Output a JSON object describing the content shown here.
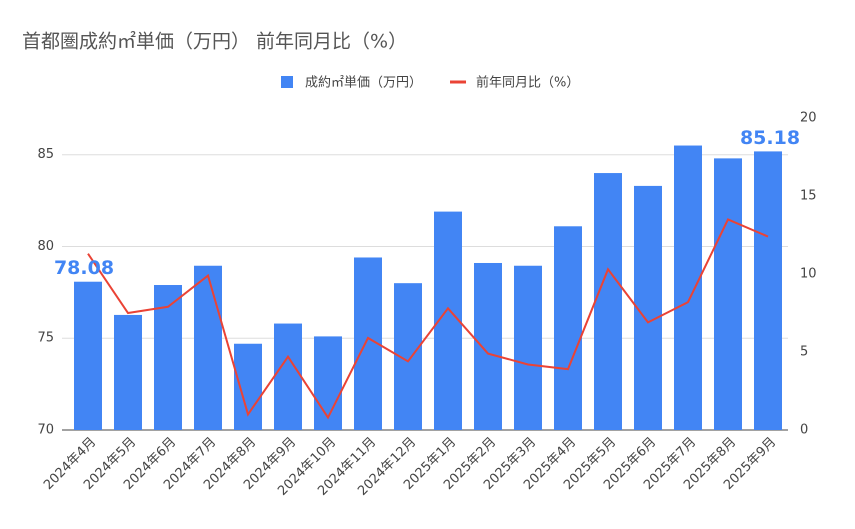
{
  "chart_data": {
    "type": "bar",
    "title": "首都圏成約㎡単価（万円） 前年同月比（%）",
    "categories": [
      "2024年4月",
      "2024年5月",
      "2024年6月",
      "2024年7月",
      "2024年8月",
      "2024年9月",
      "2024年10月",
      "2024年11月",
      "2024年12月",
      "2025年1月",
      "2025年2月",
      "2025年3月",
      "2025年4月",
      "2025年5月",
      "2025年6月",
      "2025年7月",
      "2025年8月",
      "2025年9月"
    ],
    "series": [
      {
        "name": "成約㎡単価（万円）",
        "type": "bar",
        "color": "#4285f4",
        "values": [
          78.08,
          76.27,
          77.9,
          78.95,
          74.7,
          75.8,
          75.1,
          79.4,
          78.0,
          81.9,
          79.1,
          78.95,
          81.1,
          84.0,
          83.3,
          85.5,
          84.8,
          85.18
        ]
      },
      {
        "name": "前年同月比（%）",
        "type": "line",
        "axis": "y2",
        "color": "#ea4335",
        "values": [
          11.3,
          7.5,
          7.9,
          9.9,
          1.0,
          4.7,
          0.8,
          5.9,
          4.4,
          7.8,
          4.9,
          4.2,
          3.9,
          10.3,
          6.9,
          8.2,
          13.5,
          12.4
        ]
      }
    ],
    "data_labels": "ends",
    "ylim": [
      70,
      87
    ],
    "yticks": [
      70,
      75,
      80,
      85
    ],
    "y2lim": [
      0,
      20
    ],
    "y2ticks": [
      0,
      5,
      10,
      15,
      20
    ],
    "grid": true
  }
}
